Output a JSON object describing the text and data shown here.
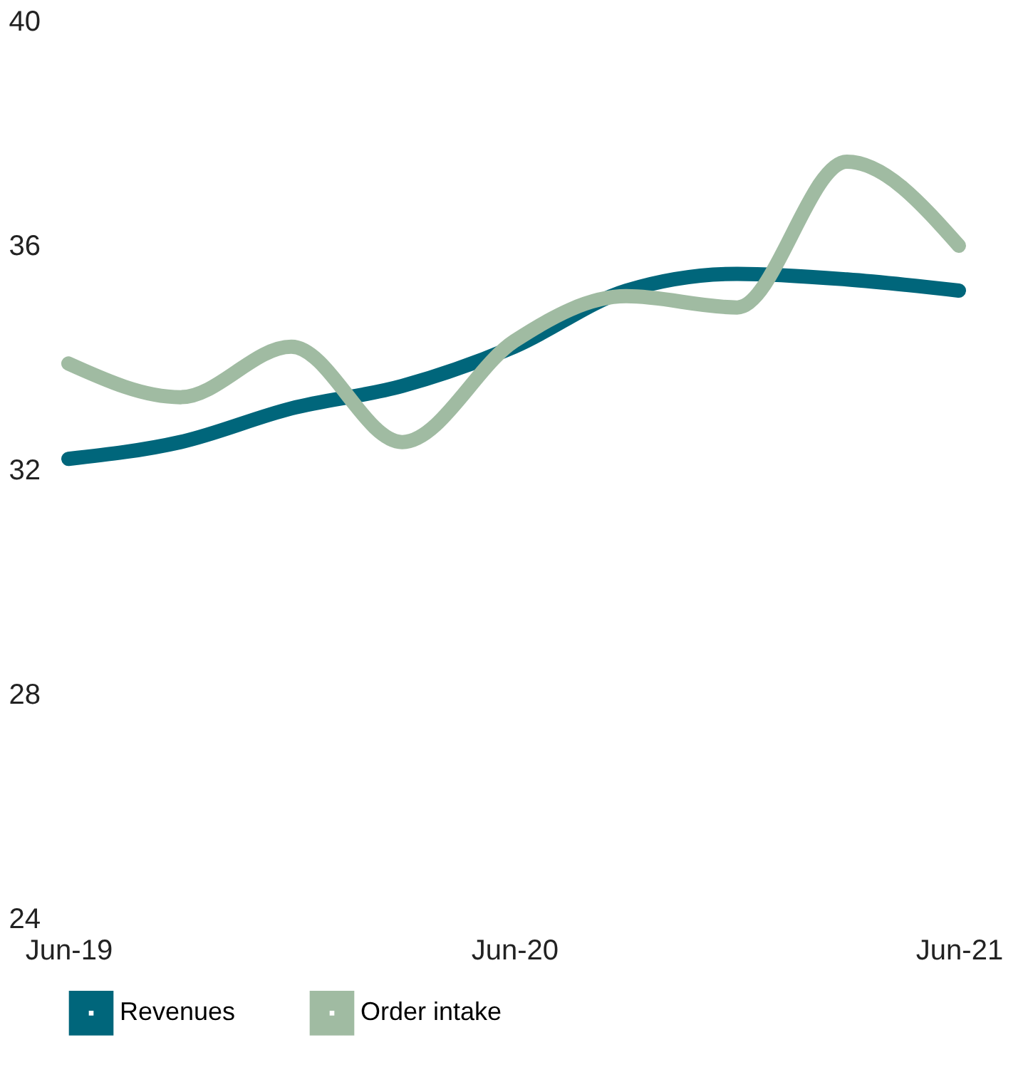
{
  "chart_data": {
    "type": "line",
    "x": [
      "2019-06",
      "2019-09",
      "2019-12",
      "2020-03",
      "2020-06",
      "2020-09",
      "2020-12",
      "2021-03",
      "2021-06"
    ],
    "series": [
      {
        "name": "Revenues",
        "color": "#00667b",
        "values": [
          32.2,
          32.5,
          33.1,
          33.5,
          34.2,
          35.2,
          35.5,
          35.4,
          35.2
        ]
      },
      {
        "name": "Order intake",
        "color": "#a0bba2",
        "values": [
          33.9,
          33.3,
          34.2,
          32.5,
          34.3,
          35.1,
          34.9,
          37.5,
          36.0
        ]
      }
    ],
    "xlim": [
      "2019-06",
      "2021-06"
    ],
    "xticks": [
      {
        "value": "2019-06",
        "label": "Jun-19"
      },
      {
        "value": "2020-06",
        "label": "Jun-20"
      },
      {
        "value": "2021-06",
        "label": "Jun-21"
      }
    ],
    "ylim": [
      24,
      40
    ],
    "yticks": [
      24,
      28,
      32,
      36,
      40
    ],
    "grid": false,
    "legend": "bottom",
    "marker": "none",
    "line_style": "solid"
  }
}
